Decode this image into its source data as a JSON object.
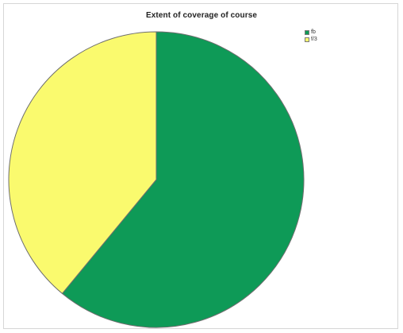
{
  "chart_data": {
    "type": "pie",
    "title": "Extent of coverage of course",
    "legend_position": "top-right",
    "slices": [
      {
        "label": "fb",
        "value": 61,
        "color": "#0e9a57"
      },
      {
        "label": "f/3",
        "value": 39,
        "color": "#fafa6e"
      }
    ],
    "start_angle_deg": 0,
    "direction": "clockwise",
    "outline_color": "#6e6e6e"
  }
}
